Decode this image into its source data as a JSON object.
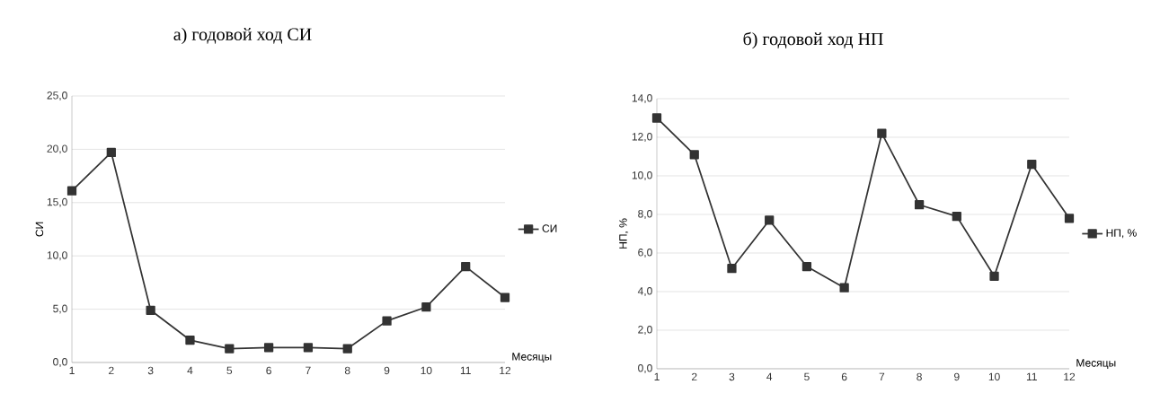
{
  "chart_data": [
    {
      "type": "line",
      "title": "а) годовой ход СИ",
      "xlabel": "Месяцы",
      "ylabel": "СИ",
      "categories": [
        "1",
        "2",
        "3",
        "4",
        "5",
        "6",
        "7",
        "8",
        "9",
        "10",
        "11",
        "12"
      ],
      "series": [
        {
          "name": "СИ",
          "color": "#333333",
          "values": [
            16.1,
            19.7,
            4.9,
            2.1,
            1.3,
            1.4,
            1.4,
            1.3,
            3.9,
            5.2,
            9.0,
            6.1
          ]
        }
      ],
      "ylim": [
        0,
        25
      ],
      "yticks": [
        {
          "value": 0,
          "label": "0,0"
        },
        {
          "value": 5,
          "label": "5,0"
        },
        {
          "value": 10,
          "label": "10,0"
        },
        {
          "value": 15,
          "label": "15,0"
        },
        {
          "value": 20,
          "label": "20,0"
        },
        {
          "value": 25,
          "label": "25,0"
        }
      ],
      "grid": "y",
      "legend": "right",
      "marker": "square"
    },
    {
      "type": "line",
      "title": "б) годовой ход НП",
      "xlabel": "Месяцы",
      "ylabel": "НП, %",
      "categories": [
        "1",
        "2",
        "3",
        "4",
        "5",
        "6",
        "7",
        "8",
        "9",
        "10",
        "11",
        "12"
      ],
      "series": [
        {
          "name": "НП, %",
          "color": "#333333",
          "values": [
            13.0,
            11.1,
            5.2,
            7.7,
            5.3,
            4.2,
            12.2,
            8.5,
            7.9,
            4.8,
            10.6,
            7.8
          ]
        }
      ],
      "ylim": [
        0,
        14
      ],
      "yticks": [
        {
          "value": 0,
          "label": "0,0"
        },
        {
          "value": 2,
          "label": "2,0"
        },
        {
          "value": 4,
          "label": "4,0"
        },
        {
          "value": 6,
          "label": "6,0"
        },
        {
          "value": 8,
          "label": "8,0"
        },
        {
          "value": 10,
          "label": "10,0"
        },
        {
          "value": 12,
          "label": "12,0"
        },
        {
          "value": 14,
          "label": "14,0"
        }
      ],
      "grid": "y",
      "legend": "right",
      "marker": "square"
    }
  ]
}
